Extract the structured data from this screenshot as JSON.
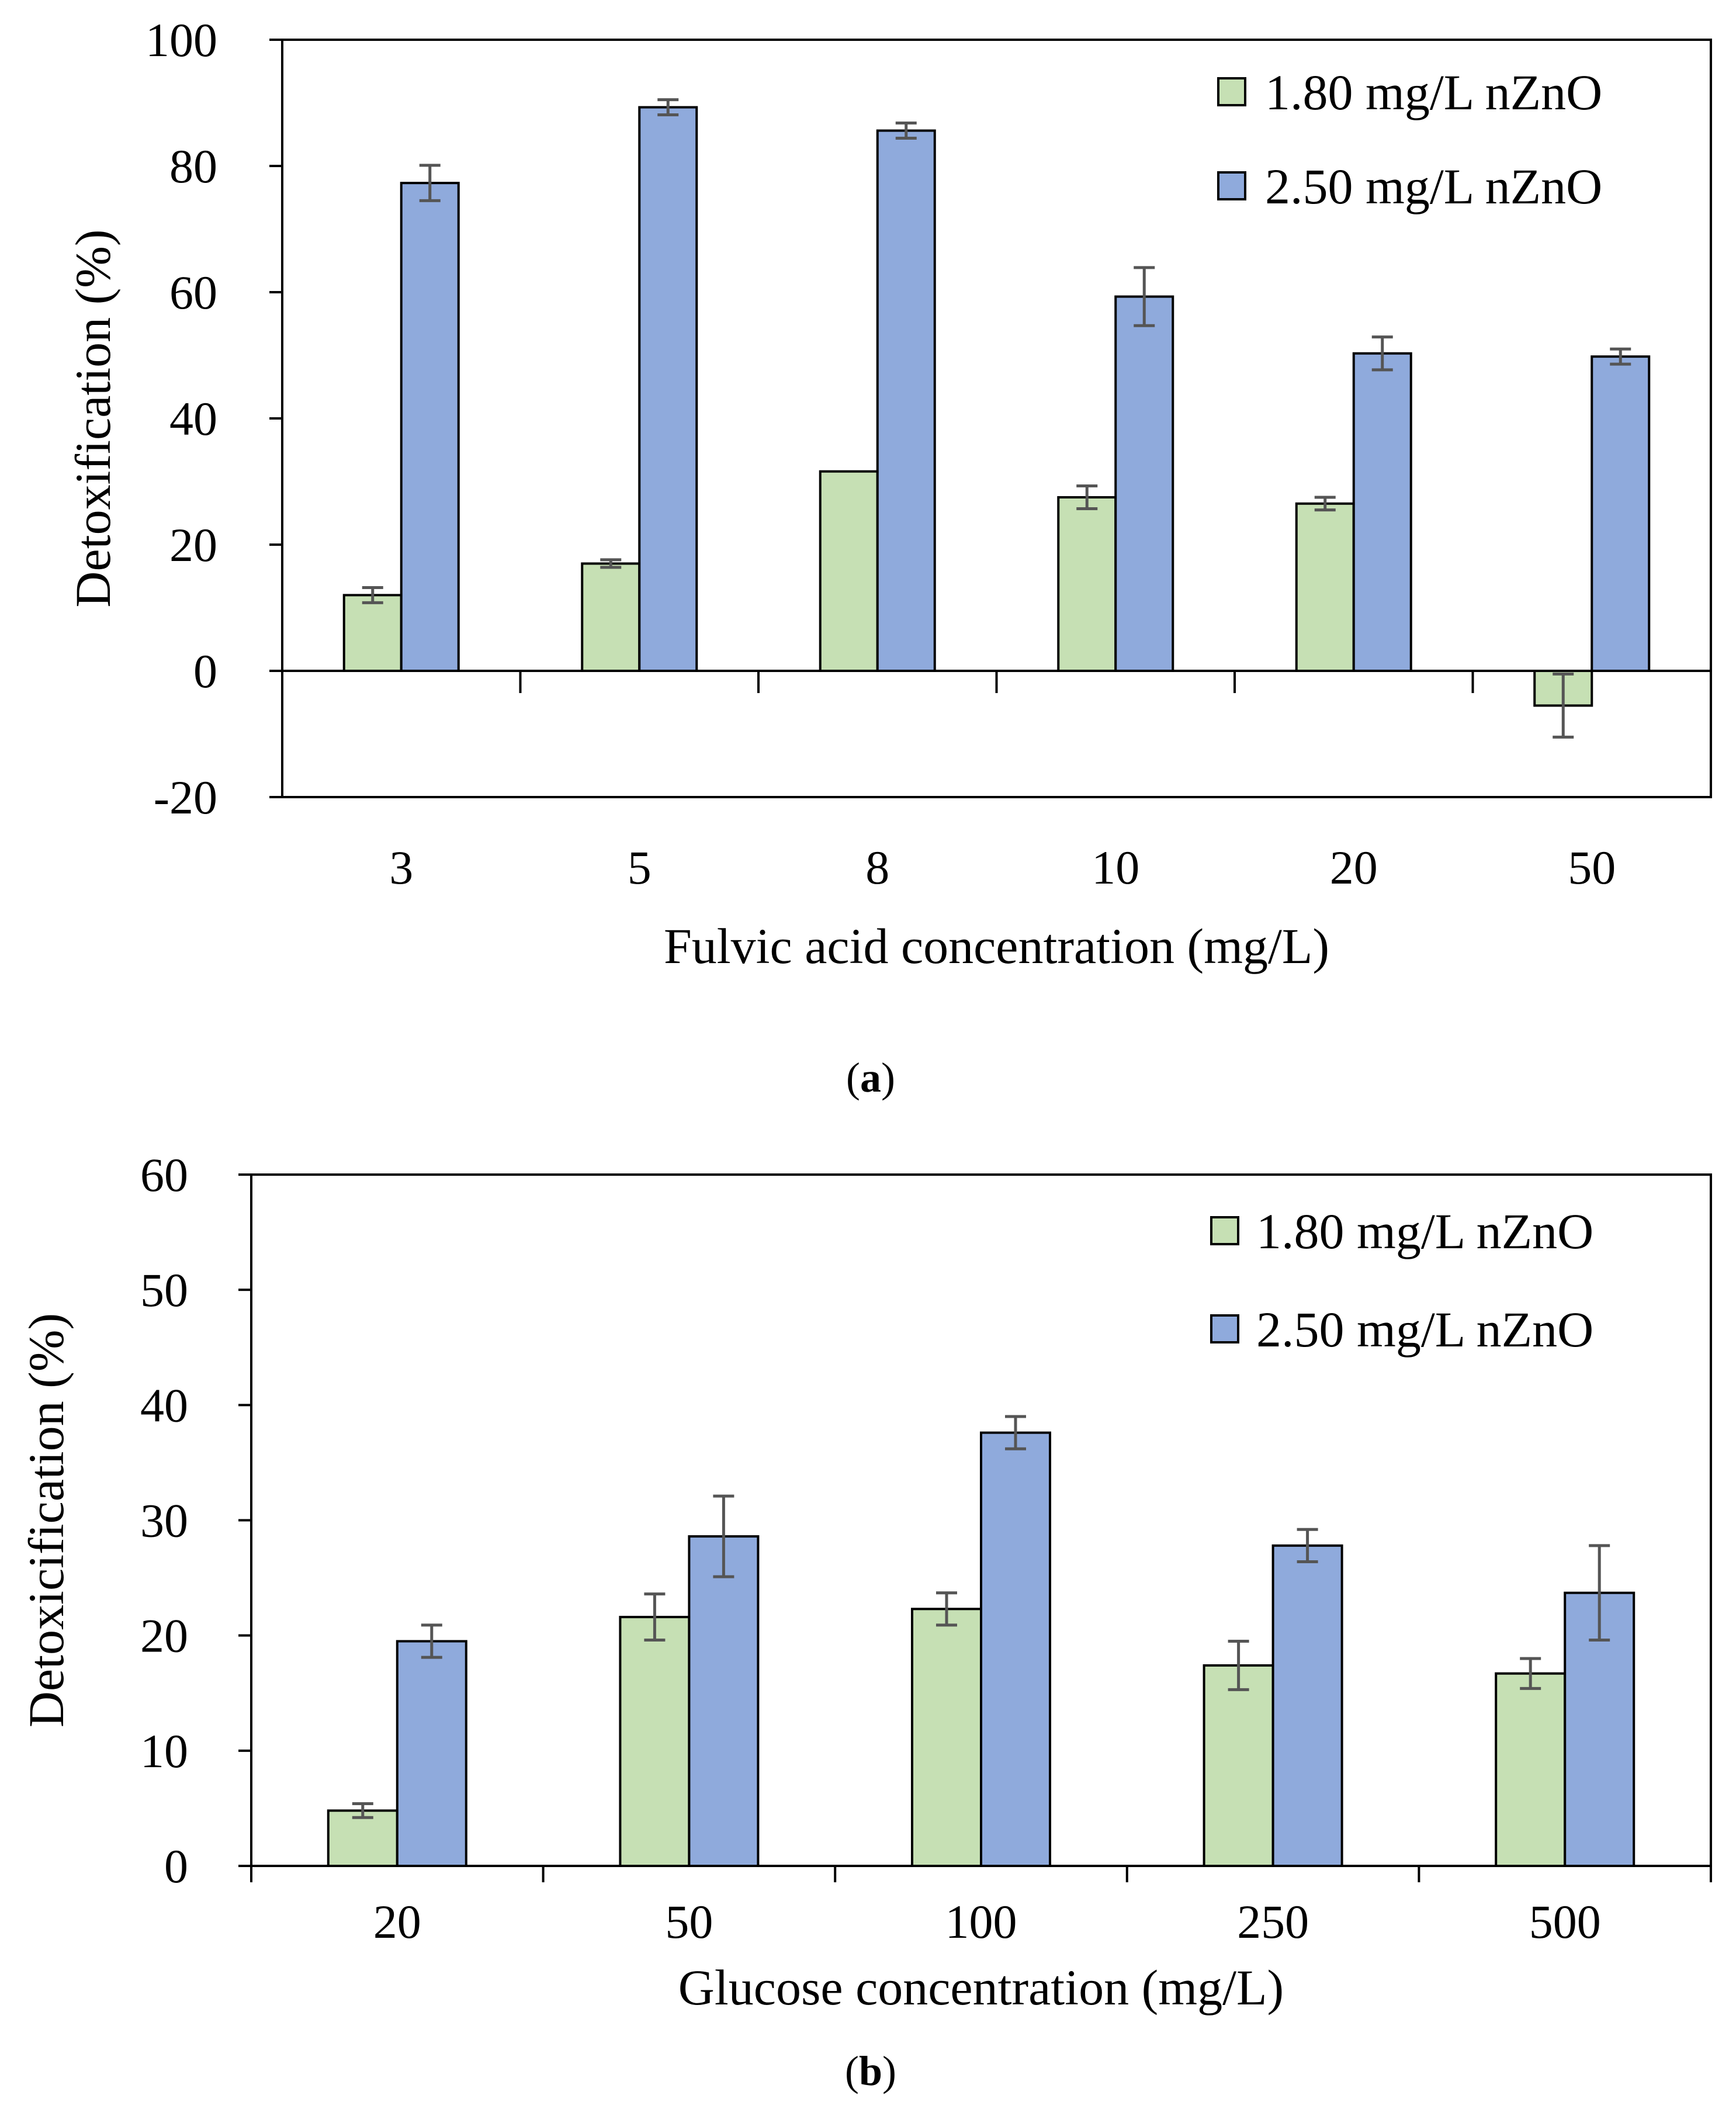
{
  "chart_data": [
    {
      "panel": "a",
      "type": "bar",
      "caption": {
        "open": "(",
        "letter": "a",
        "close": ")"
      },
      "categories": [
        "3",
        "5",
        "8",
        "10",
        "20",
        "50"
      ],
      "xlabel": "Fulvic acid concentration (mg/L)",
      "ylabel": "Detoxification (%)",
      "ylim": [
        -20,
        100
      ],
      "yticks": [
        -20,
        0,
        20,
        40,
        60,
        80,
        100
      ],
      "ytick_labels": [
        "-20",
        "0",
        "20",
        "40",
        "60",
        "80",
        "100"
      ],
      "grid": false,
      "legend": "top-right",
      "series": [
        {
          "name": "1.80 mg/L nZnO",
          "color": "#c6e0b4",
          "values": [
            12,
            17,
            31.6,
            27.5,
            26.5,
            -5.5
          ],
          "errors": [
            1.2,
            0.6,
            0,
            1.8,
            1.0,
            5.0
          ]
        },
        {
          "name": "2.50 mg/L nZnO",
          "color": "#8faadc",
          "values": [
            77.3,
            89.3,
            85.6,
            59.3,
            50.3,
            49.8
          ],
          "errors": [
            2.8,
            1.2,
            1.2,
            4.6,
            2.6,
            1.2
          ]
        }
      ]
    },
    {
      "panel": "b",
      "type": "bar",
      "caption": {
        "open": "(",
        "letter": "b",
        "close": ")"
      },
      "categories": [
        "20",
        "50",
        "100",
        "250",
        "500"
      ],
      "xlabel": "Glucose concentration (mg/L)",
      "ylabel": "Detoxicification (%)",
      "ylim": [
        0,
        60
      ],
      "yticks": [
        0,
        10,
        20,
        30,
        40,
        50,
        60
      ],
      "ytick_labels": [
        "0",
        "10",
        "20",
        "30",
        "40",
        "50",
        "60"
      ],
      "grid": false,
      "legend": "top-right",
      "series": [
        {
          "name": "1.80 mg/L nZnO",
          "color": "#c6e0b4",
          "values": [
            4.8,
            21.6,
            22.3,
            17.4,
            16.7
          ],
          "errors": [
            0.6,
            2.0,
            1.4,
            2.1,
            1.3
          ]
        },
        {
          "name": "2.50 mg/L nZnO",
          "color": "#8faadc",
          "values": [
            19.5,
            28.6,
            37.6,
            27.8,
            23.7
          ],
          "errors": [
            1.4,
            3.5,
            1.4,
            1.4,
            4.1
          ]
        }
      ]
    }
  ]
}
